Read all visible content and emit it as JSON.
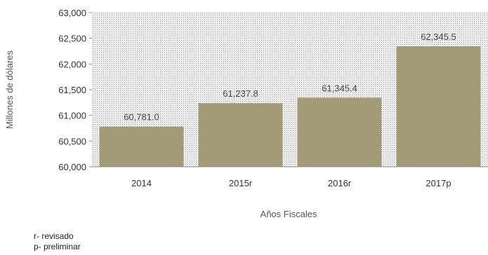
{
  "chart_data": {
    "type": "bar",
    "categories": [
      "2014",
      "2015r",
      "2016r",
      "2017p"
    ],
    "values": [
      60781.0,
      61237.8,
      61345.4,
      62345.5
    ],
    "data_labels": [
      "60,781.0",
      "61,237.8",
      "61,345.4",
      "62,345.5"
    ],
    "title": "",
    "xlabel": "Años Fiscales",
    "ylabel": "Millones de dólares",
    "ylim": [
      60000,
      63000
    ],
    "yticks": [
      60000,
      60500,
      61000,
      61500,
      62000,
      62500,
      63000
    ],
    "ytick_labels": [
      "60,000",
      "60,500",
      "61,000",
      "61,500",
      "62,000",
      "62,500",
      "63,000"
    ],
    "grid": false,
    "bar_color": "#A39A77",
    "plot_background": "dotted gray pattern"
  },
  "notes": {
    "revisado": "r- revisado",
    "preliminar": "p- preliminar"
  }
}
